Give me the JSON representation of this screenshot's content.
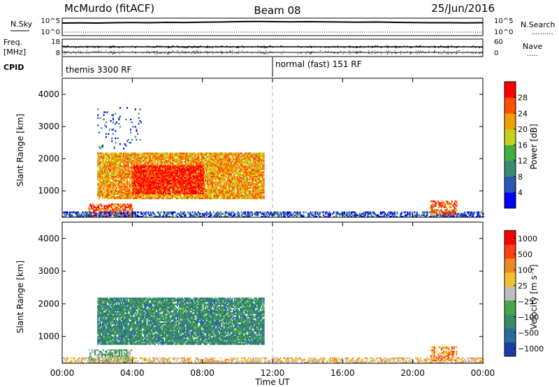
{
  "header": {
    "title_left": "McMurdo (fitACF)",
    "title_center": "Beam 08",
    "title_right": "25/Jun/2016"
  },
  "chart_data": [
    {
      "type": "line",
      "name": "noise-panel",
      "left_label": "N.Sky",
      "right_label": "N.Search",
      "left_ticks": [
        "10^5",
        "10^0"
      ],
      "right_ticks": [
        "10^5",
        "10^0"
      ],
      "series": [
        {
          "name": "N.Sky",
          "y_frac": [
            0.72,
            0.73,
            0.72,
            0.74,
            0.75,
            0.74,
            0.76,
            0.75,
            0.77,
            0.78,
            0.8,
            0.81,
            0.8,
            0.79,
            0.8,
            0.79,
            0.78,
            0.77,
            0.78,
            0.76,
            0.75,
            0.74,
            0.74,
            0.73,
            0.74
          ]
        },
        {
          "name": "N.Search",
          "y_frac": [
            0.2,
            0.2,
            0.2,
            0.2,
            0.2,
            0.2,
            0.2,
            0.2,
            0.2,
            0.2,
            0.2,
            0.2,
            0.2,
            0.2,
            0.2,
            0.2,
            0.2,
            0.2,
            0.2,
            0.2,
            0.2,
            0.2,
            0.2,
            0.2,
            0.2
          ]
        }
      ]
    },
    {
      "type": "line",
      "name": "freq-panel",
      "left_label": "Freq.",
      "left_unit": "[MHz]",
      "right_label": "Nave",
      "left_ticks": [
        "18",
        "8"
      ],
      "right_ticks": [
        "60",
        "0"
      ],
      "cpid_label": "CPID",
      "cpid_segments": [
        {
          "label": "themis 3300 RF",
          "start_hour": 0,
          "end_hour": 12
        },
        {
          "label": "normal (fast) 151 RF",
          "start_hour": 12,
          "end_hour": 24
        }
      ]
    },
    {
      "type": "heatmap",
      "name": "power",
      "parameter": "Power",
      "ylabel": "Slant Range [km]",
      "ylim": [
        180,
        4500
      ],
      "yticks": [
        "1000",
        "2000",
        "3000",
        "4000"
      ],
      "xlim": [
        0,
        24
      ],
      "colorbar_label": "Power [dB]",
      "colorbar_ticks": [
        "4",
        "8",
        "12",
        "16",
        "20",
        "24",
        "28"
      ],
      "colorbar_colors": [
        "#0000ff",
        "#2a55b4",
        "#3a8a70",
        "#42b040",
        "#c8d020",
        "#f0a000",
        "#ff5000",
        "#ff0000"
      ],
      "scatter_regions": [
        {
          "t0": 2.0,
          "t1": 11.5,
          "r0": 750,
          "r1": 2150,
          "level": 5,
          "density": 0.85
        },
        {
          "t0": 4.0,
          "t1": 8.0,
          "r0": 900,
          "r1": 1800,
          "level": 7,
          "density": 0.75
        },
        {
          "t0": 1.5,
          "t1": 4.0,
          "r0": 200,
          "r1": 600,
          "level": 6,
          "density": 0.6
        },
        {
          "t0": 0.0,
          "t1": 24.0,
          "r0": 180,
          "r1": 350,
          "level": 1,
          "density": 0.55
        },
        {
          "t0": 21.0,
          "t1": 22.5,
          "r0": 250,
          "r1": 700,
          "level": 6,
          "density": 0.5
        },
        {
          "t0": 2.0,
          "t1": 4.5,
          "r0": 2300,
          "r1": 3600,
          "level": 1,
          "density": 0.08
        }
      ]
    },
    {
      "type": "heatmap",
      "name": "velocity",
      "parameter": "Velocity",
      "ylabel": "Slant Range [km]",
      "ylim": [
        180,
        4500
      ],
      "yticks": [
        "1000",
        "2000",
        "3000",
        "4000"
      ],
      "xlim": [
        0,
        24
      ],
      "xticks": [
        "00:00",
        "04:00",
        "08:00",
        "12:00",
        "16:00",
        "20:00",
        "00:00"
      ],
      "xlabel": "Time UT",
      "colorbar_label": "Velocity [m s⁻¹]",
      "colorbar_ticks": [
        "1000",
        "500",
        "100",
        "25",
        "−25",
        "−100",
        "−500",
        "−1000"
      ],
      "colorbar_colors": [
        "#1b3ca8",
        "#2a6aa0",
        "#3a8a68",
        "#44a844",
        "#bdbdbd",
        "#f0c030",
        "#f08a20",
        "#ff4010",
        "#ff0000"
      ],
      "scatter_regions": [
        {
          "t0": 2.0,
          "t1": 11.5,
          "r0": 750,
          "r1": 2150,
          "level": 2,
          "density": 0.85
        },
        {
          "t0": 1.5,
          "t1": 4.0,
          "r0": 200,
          "r1": 600,
          "level": 3,
          "density": 0.6
        },
        {
          "t0": 0.0,
          "t1": 24.0,
          "r0": 180,
          "r1": 350,
          "level": 5,
          "density": 0.45
        },
        {
          "t0": 21.0,
          "t1": 22.5,
          "r0": 250,
          "r1": 700,
          "level": 6,
          "density": 0.5
        }
      ]
    }
  ]
}
